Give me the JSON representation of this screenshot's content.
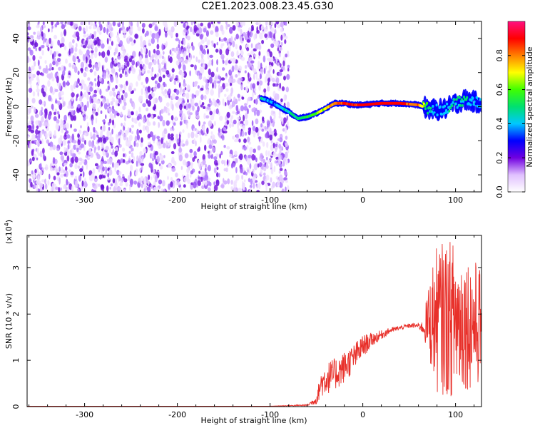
{
  "title": "C2E1.2023.008.23.45.G30",
  "colors": {
    "snr_line": "#e8302a",
    "noise_purple": "#7b1fe0",
    "colorbar_stops": [
      "#ffffff",
      "#e0c0ff",
      "#7000e0",
      "#0000ff",
      "#00c8ff",
      "#00e070",
      "#40ff00",
      "#ffff00",
      "#ff8000",
      "#ff0000",
      "#ff1080"
    ]
  },
  "chart_data": [
    {
      "type": "heatmap",
      "title": "C2E1.2023.008.23.45.G30",
      "xlabel": "Height of straight line (km)",
      "ylabel": "Frequency (Hz)",
      "xlim": [
        -362,
        128
      ],
      "ylim": [
        -50,
        50
      ],
      "x_ticks": [
        -300,
        -200,
        -100,
        0,
        100
      ],
      "x_tick_labels": [
        "-300",
        "-200",
        "-100",
        "0",
        "100"
      ],
      "y_ticks": [
        -40,
        -20,
        0,
        20,
        40
      ],
      "y_tick_labels": [
        "-40",
        "-20",
        "0",
        "20",
        "40"
      ],
      "noise_region_x": [
        -362,
        -80
      ],
      "ridge": {
        "x": [
          -110,
          -100,
          -90,
          -80,
          -70,
          -60,
          -50,
          -40,
          -30,
          -20,
          -10,
          0,
          20,
          40,
          60,
          70,
          80,
          90,
          100,
          110,
          120,
          128
        ],
        "freq": [
          5,
          3,
          0,
          -3,
          -7,
          -6,
          -4,
          -1,
          2,
          2,
          1,
          1,
          2,
          2,
          1,
          -1,
          -2,
          -1,
          2,
          4,
          3,
          2
        ],
        "amp": [
          0.45,
          0.35,
          0.4,
          0.45,
          0.5,
          0.55,
          0.6,
          0.7,
          0.8,
          0.9,
          0.85,
          0.9,
          0.9,
          0.9,
          0.8,
          0.5,
          0.35,
          0.4,
          0.45,
          0.5,
          0.4,
          0.35
        ]
      },
      "colorbar": {
        "label": "Normalized spectral amplitude",
        "range": [
          0,
          1
        ],
        "ticks": [
          0.0,
          0.2,
          0.4,
          0.6,
          0.8
        ],
        "tick_labels": [
          "0.0",
          "0.2",
          "0.4",
          "0.6",
          "0.8"
        ]
      },
      "grid": false
    },
    {
      "type": "line",
      "xlabel": "Height of straight line (km)",
      "ylabel": "SNR (10 * v/v)",
      "y_scale_note": "(x10",
      "y_scale_exp": "4",
      "xlim": [
        -362,
        128
      ],
      "ylim": [
        0,
        3.7
      ],
      "x_ticks": [
        -300,
        -200,
        -100,
        0,
        100
      ],
      "x_tick_labels": [
        "-300",
        "-200",
        "-100",
        "0",
        "100"
      ],
      "y_ticks": [
        0,
        1,
        2,
        3
      ],
      "y_tick_labels": [
        "0",
        "1",
        "2",
        "3"
      ],
      "series": [
        {
          "x": [
            -362,
            -300,
            -200,
            -100,
            -60,
            -50,
            -45,
            -40,
            -30,
            -20,
            -10,
            0,
            10,
            20,
            30,
            40,
            50,
            60,
            65,
            70,
            75,
            80,
            90,
            100,
            110,
            120,
            128
          ],
          "values": [
            0.01,
            0.01,
            0.01,
            0.01,
            0.03,
            0.15,
            0.5,
            0.6,
            0.7,
            0.85,
            1.05,
            1.3,
            1.45,
            1.55,
            1.65,
            1.7,
            1.75,
            1.75,
            1.7,
            1.8,
            1.9,
            1.9,
            1.9,
            1.9,
            1.85,
            1.8,
            1.75
          ],
          "spread": [
            0,
            0,
            0,
            0,
            0.02,
            0.1,
            0.3,
            0.35,
            0.35,
            0.35,
            0.3,
            0.25,
            0.15,
            0.1,
            0.06,
            0.05,
            0.05,
            0.06,
            0.15,
            0.7,
            1.2,
            1.6,
            1.7,
            1.7,
            1.5,
            1.4,
            1.3
          ]
        }
      ],
      "grid": false
    }
  ]
}
